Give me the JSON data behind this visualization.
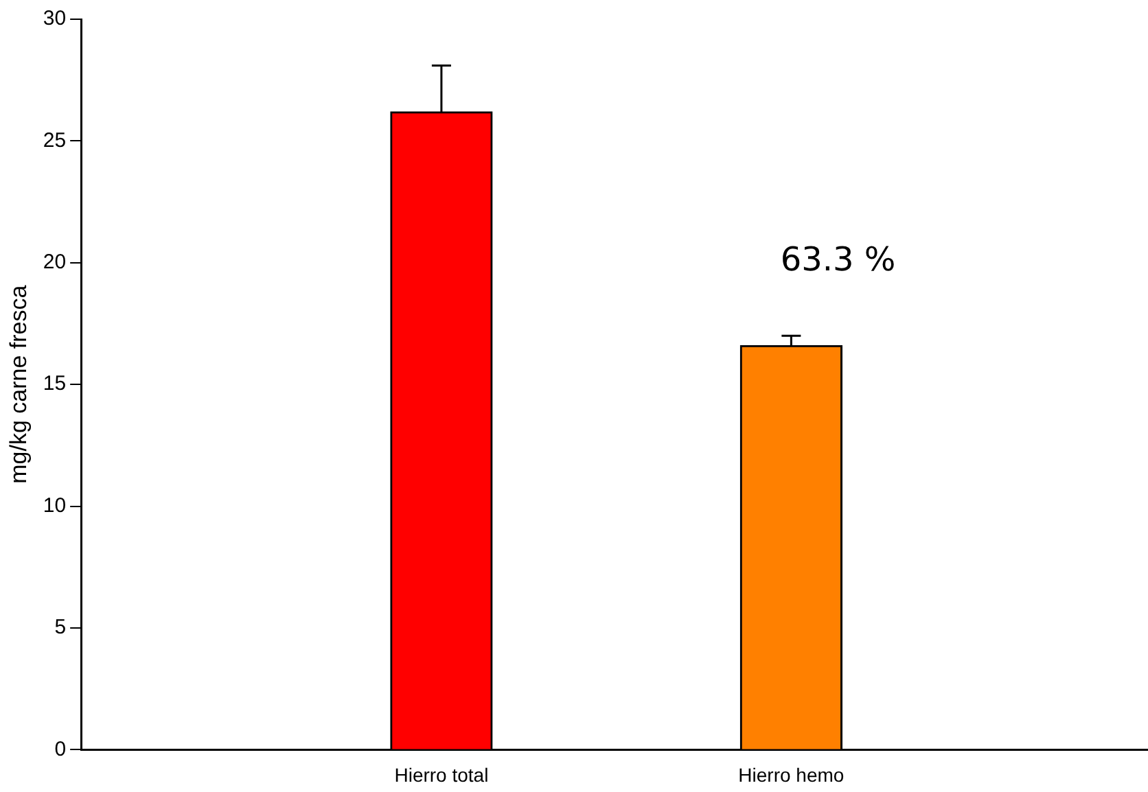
{
  "chart_data": {
    "type": "bar",
    "ylabel": "mg/kg carne fresca",
    "categories": [
      "Hierro total",
      "Hierro hemo"
    ],
    "values": [
      26.2,
      16.6
    ],
    "colors": [
      "#ff0000",
      "#ff8000"
    ],
    "errors": [
      1.9,
      0.4
    ],
    "ylim": [
      0,
      30
    ],
    "yticks": [
      0,
      5,
      10,
      15,
      20,
      25,
      30
    ],
    "grid": false,
    "legend": false,
    "annotations": [
      "63.3 %"
    ]
  }
}
